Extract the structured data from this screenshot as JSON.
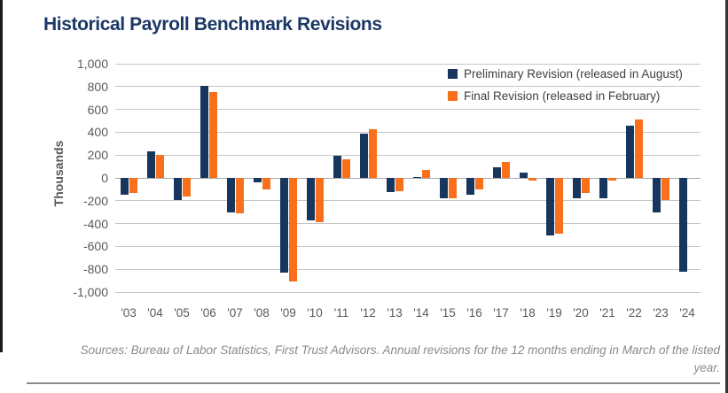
{
  "chart_data": {
    "type": "bar",
    "title": "Historical Payroll Benchmark Revisions",
    "ylabel": "Thousands",
    "xlabel": "",
    "ylim": [
      -1000,
      1000
    ],
    "grid": true,
    "legend_position": "top-right",
    "y_ticks": [
      {
        "value": 1000,
        "label": "1,000"
      },
      {
        "value": 800,
        "label": "800"
      },
      {
        "value": 600,
        "label": "600"
      },
      {
        "value": 400,
        "label": "400"
      },
      {
        "value": 200,
        "label": "200"
      },
      {
        "value": 0,
        "label": "0"
      },
      {
        "value": -200,
        "label": "-200"
      },
      {
        "value": -400,
        "label": "-400"
      },
      {
        "value": -600,
        "label": "-600"
      },
      {
        "value": -800,
        "label": "-800"
      },
      {
        "value": -1000,
        "label": "-1,000"
      }
    ],
    "categories": [
      "'03",
      "'04",
      "'05",
      "'06",
      "'07",
      "'08",
      "'09",
      "'10",
      "'11",
      "'12",
      "'13",
      "'14",
      "'15",
      "'16",
      "'17",
      "'18",
      "'19",
      "'20",
      "'21",
      "'22",
      "'23",
      "'24"
    ],
    "series": [
      {
        "key": "preliminary",
        "name": "Preliminary Revision (released in August)",
        "color": "#17365d",
        "values": [
          -150,
          235,
          -195,
          810,
          -300,
          -35,
          -830,
          -375,
          195,
          385,
          -125,
          10,
          -180,
          -150,
          95,
          50,
          -500,
          -180,
          -175,
          460,
          -305,
          -820
        ]
      },
      {
        "key": "final",
        "name": "Final Revision (released in February)",
        "color": "#f8701c",
        "values": [
          -130,
          200,
          -165,
          750,
          -310,
          -100,
          -905,
          -390,
          165,
          430,
          -120,
          70,
          -175,
          -100,
          140,
          -20,
          -490,
          -130,
          -20,
          510,
          -190,
          null
        ]
      }
    ]
  },
  "footer": {
    "line1": "Sources: Bureau of Labor Statistics, First Trust Advisors. Annual revisions for the 12 months ending in March of the listed",
    "line2": "year."
  },
  "colors": {
    "title": "#1b3764",
    "axis_text": "#595959",
    "gridline": "#c6c6c6",
    "footer_text": "#8a8a8a"
  }
}
